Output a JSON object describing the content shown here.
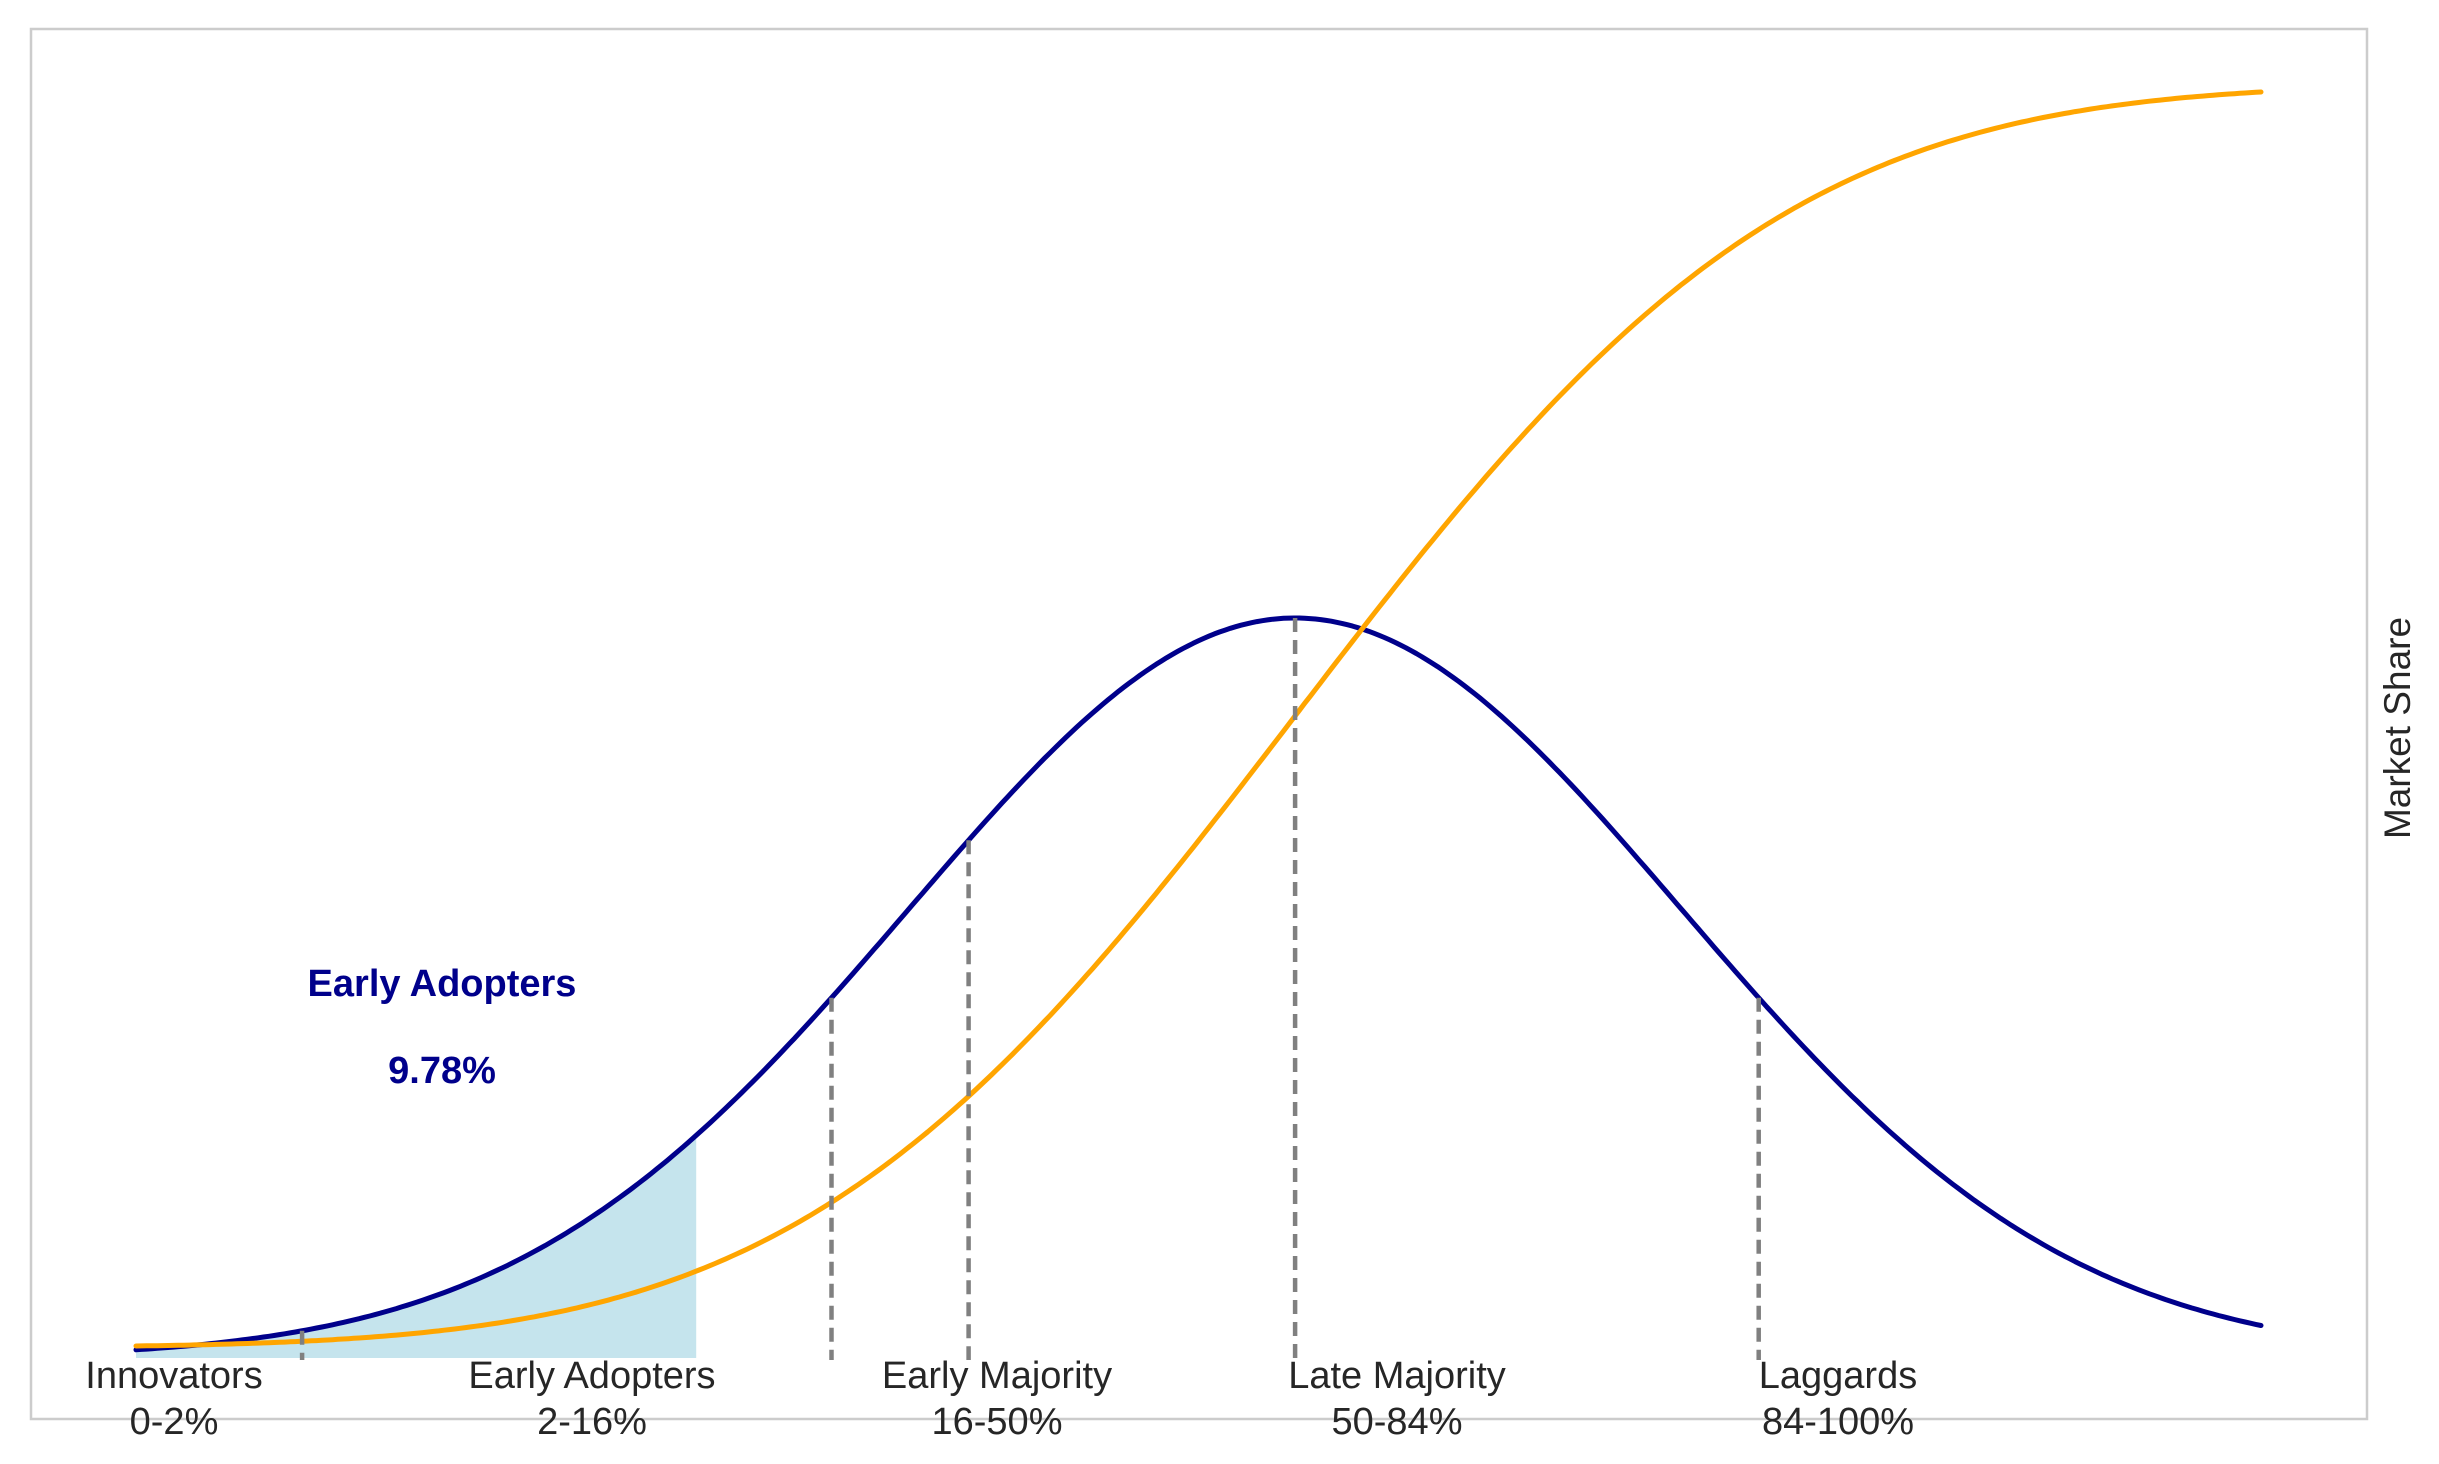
{
  "chart_data": {
    "type": "line",
    "title": "",
    "xlabel": "",
    "ylabel": "Market Share",
    "grid": false,
    "legend": "none",
    "series": [
      {
        "kind": "bell-curve",
        "color": "#00008b",
        "mean": 0,
        "sd": 1,
        "x_range": [
          -3,
          2.5
        ]
      },
      {
        "kind": "cumulative-s-curve",
        "color": "#ffa500",
        "mean": 0,
        "sd": 1,
        "x_range": [
          -3,
          2.5
        ]
      }
    ],
    "boundaries_sd": [
      -2.57,
      -1.2,
      -0.845,
      0,
      1.2
    ],
    "boundary_color": "#808080",
    "highlight": {
      "name": "Early Adopters",
      "value_text": "9.78%",
      "from_sd": -3,
      "to_sd": -1.55,
      "fill": "#add8e6",
      "text_color": "#00008b"
    },
    "segments": [
      {
        "name": "Innovators",
        "range": "0-2%"
      },
      {
        "name": "Early Adopters",
        "range": "2-16%"
      },
      {
        "name": "Early Majority",
        "range": "16-50%"
      },
      {
        "name": "Late Majority",
        "range": "50-84%"
      },
      {
        "name": "Laggards",
        "range": "84-100%"
      }
    ]
  }
}
